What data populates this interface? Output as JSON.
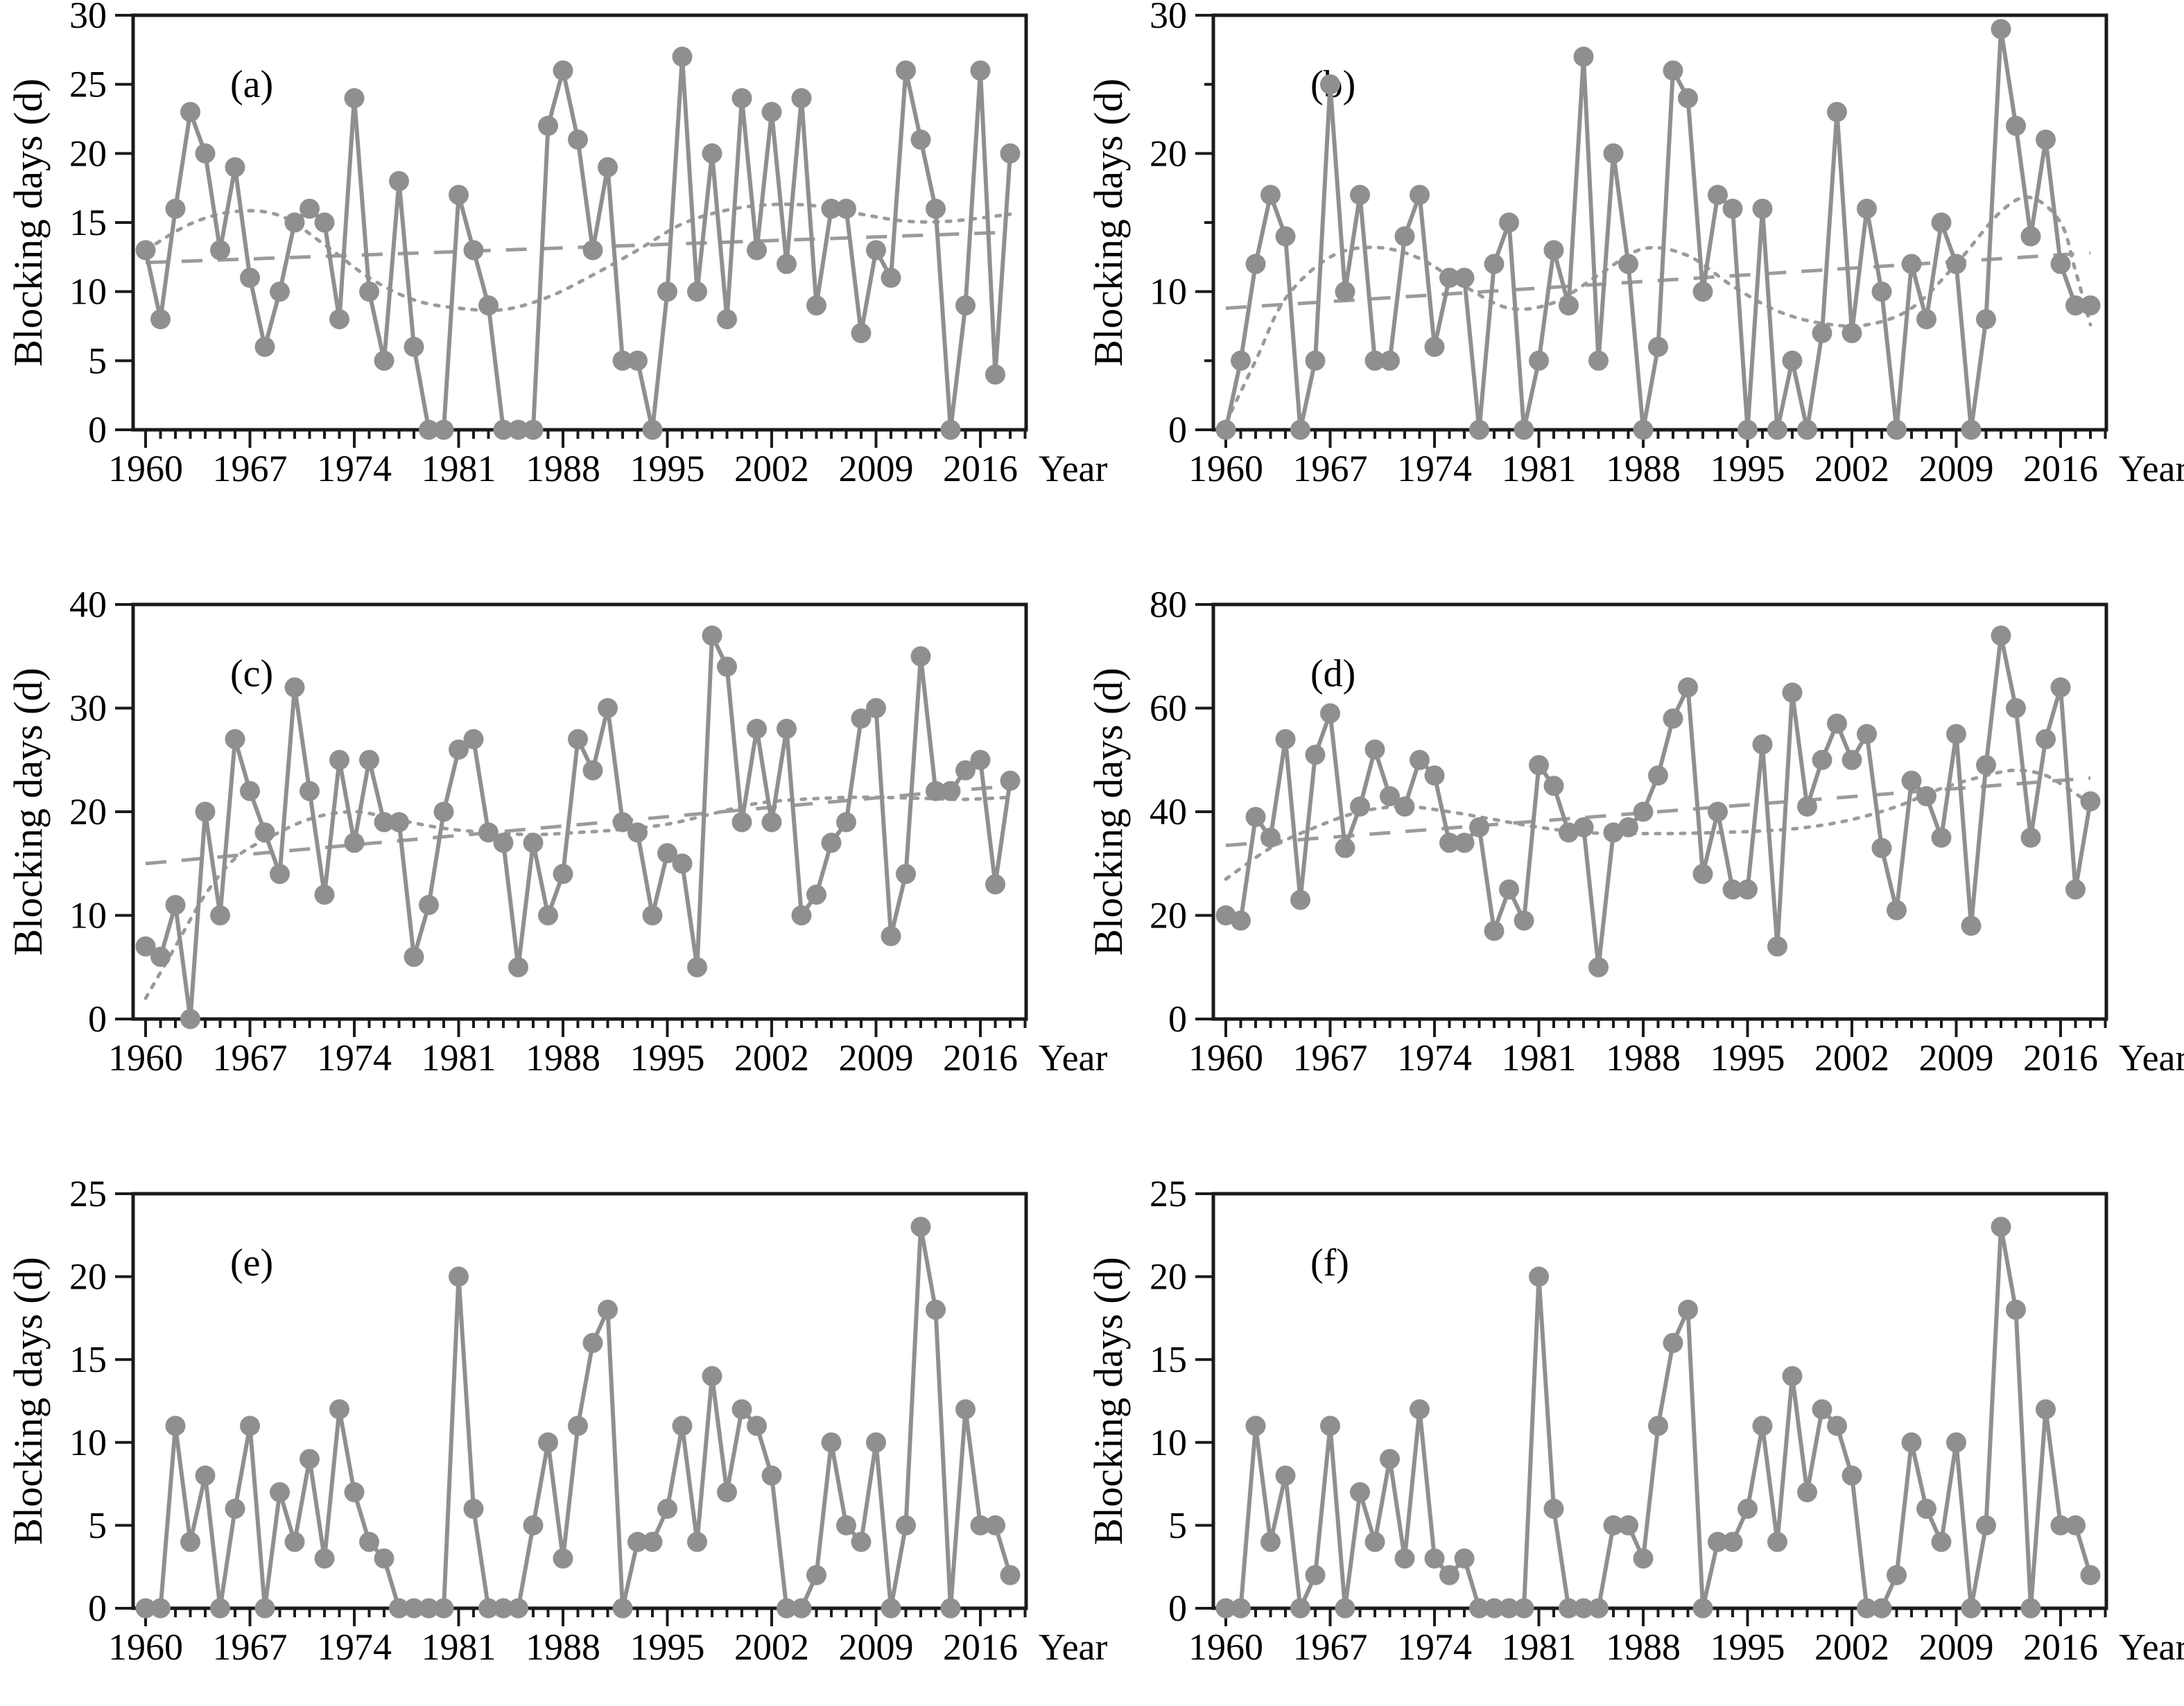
{
  "shared": {
    "xlabel": "Year",
    "ylabel": "Blocking days (d)",
    "start_year": 1960,
    "end_year": 2018,
    "series_color": "#8f8f8f",
    "trend_color": "#9b9b9b",
    "axis_color": "#1a1a1a",
    "grid": "off",
    "legend": "none"
  },
  "chart_data": [
    {
      "type": "line",
      "letter": "(a)",
      "ylim": [
        0,
        30
      ],
      "yticks": [
        0,
        5,
        10,
        15,
        20,
        25,
        30
      ],
      "yticks_minor": [],
      "xticks": [
        1960,
        1967,
        1974,
        1981,
        1988,
        1995,
        2002,
        2009,
        2016
      ],
      "x_start": 1960,
      "values": [
        13,
        8,
        16,
        23,
        20,
        13,
        19,
        11,
        6,
        10,
        15,
        16,
        15,
        8,
        24,
        10,
        5,
        18,
        6,
        0,
        0,
        17,
        13,
        9,
        0,
        0,
        0,
        22,
        26,
        21,
        13,
        19,
        5,
        5,
        0,
        10,
        27,
        10,
        20,
        8,
        24,
        13,
        23,
        12,
        24,
        9,
        16,
        16,
        7,
        13,
        11,
        26,
        21,
        16,
        0,
        9,
        26,
        4,
        20
      ],
      "trend_dashed": [
        [
          1960,
          12.1
        ],
        [
          2018,
          14.3
        ]
      ],
      "trend_dotted": [
        [
          1960,
          13.0
        ],
        [
          1963,
          14.9
        ],
        [
          1966,
          15.8
        ],
        [
          1969,
          15.5
        ],
        [
          1972,
          13.4
        ],
        [
          1975,
          11.0
        ],
        [
          1978,
          9.4
        ],
        [
          1981,
          8.8
        ],
        [
          1984,
          8.7
        ],
        [
          1987,
          9.6
        ],
        [
          1990,
          11.2
        ],
        [
          1993,
          13.0
        ],
        [
          1996,
          14.9
        ],
        [
          1999,
          15.9
        ],
        [
          2002,
          16.3
        ],
        [
          2005,
          16.2
        ],
        [
          2008,
          15.6
        ],
        [
          2011,
          15.1
        ],
        [
          2014,
          15.1
        ],
        [
          2018,
          15.6
        ]
      ]
    },
    {
      "type": "line",
      "letter": "(b)",
      "ylim": [
        0,
        30
      ],
      "yticks": [
        0,
        10,
        20,
        30
      ],
      "yticks_minor": [
        5,
        15,
        25
      ],
      "xticks": [
        1960,
        1967,
        1974,
        1981,
        1988,
        1995,
        2002,
        2009,
        2016
      ],
      "x_start": 1960,
      "values": [
        0,
        5,
        12,
        17,
        14,
        0,
        5,
        25,
        10,
        17,
        5,
        5,
        14,
        17,
        6,
        11,
        11,
        0,
        12,
        15,
        0,
        5,
        13,
        9,
        27,
        5,
        20,
        12,
        0,
        6,
        26,
        24,
        10,
        17,
        16,
        0,
        16,
        0,
        5,
        0,
        7,
        23,
        7,
        16,
        10,
        0,
        12,
        8,
        15,
        12,
        0,
        8,
        29,
        22,
        14,
        21,
        12,
        9,
        9
      ],
      "trend_dashed": [
        [
          1960,
          8.8
        ],
        [
          2018,
          12.8
        ]
      ],
      "trend_dotted": [
        [
          1960,
          0.5
        ],
        [
          1962,
          5.0
        ],
        [
          1964,
          9.5
        ],
        [
          1967,
          12.5
        ],
        [
          1970,
          13.2
        ],
        [
          1973,
          12.4
        ],
        [
          1976,
          10.4
        ],
        [
          1979,
          8.8
        ],
        [
          1982,
          9.2
        ],
        [
          1985,
          11.2
        ],
        [
          1988,
          13.1
        ],
        [
          1991,
          12.6
        ],
        [
          1994,
          10.4
        ],
        [
          1997,
          8.6
        ],
        [
          2000,
          7.7
        ],
        [
          2003,
          7.6
        ],
        [
          2006,
          8.8
        ],
        [
          2009,
          12.0
        ],
        [
          2012,
          15.8
        ],
        [
          2014,
          16.8
        ],
        [
          2016,
          15.0
        ],
        [
          2017,
          11.5
        ],
        [
          2018,
          7.6
        ]
      ]
    },
    {
      "type": "line",
      "letter": "(c)",
      "ylim": [
        0,
        40
      ],
      "yticks": [
        0,
        10,
        20,
        30,
        40
      ],
      "yticks_minor": [],
      "xticks": [
        1960,
        1967,
        1974,
        1981,
        1988,
        1995,
        2002,
        2009,
        2016
      ],
      "x_start": 1960,
      "values": [
        7,
        6,
        11,
        0,
        20,
        10,
        27,
        22,
        18,
        14,
        32,
        22,
        12,
        25,
        17,
        25,
        19,
        19,
        6,
        11,
        20,
        26,
        27,
        18,
        17,
        5,
        17,
        10,
        14,
        27,
        24,
        30,
        19,
        18,
        10,
        16,
        15,
        5,
        37,
        34,
        19,
        28,
        19,
        28,
        10,
        12,
        17,
        19,
        29,
        30,
        8,
        14,
        35,
        22,
        22,
        24,
        25,
        13,
        23
      ],
      "trend_dashed": [
        [
          1960,
          15.0
        ],
        [
          2018,
          22.5
        ]
      ],
      "trend_dotted": [
        [
          1960,
          2.0
        ],
        [
          1962,
          7.0
        ],
        [
          1964,
          12.0
        ],
        [
          1966,
          15.5
        ],
        [
          1968,
          17.3
        ],
        [
          1971,
          19.3
        ],
        [
          1974,
          20.0
        ],
        [
          1977,
          19.2
        ],
        [
          1980,
          18.4
        ],
        [
          1983,
          18.0
        ],
        [
          1986,
          17.8
        ],
        [
          1989,
          18.0
        ],
        [
          1992,
          18.3
        ],
        [
          1995,
          18.8
        ],
        [
          1998,
          19.8
        ],
        [
          2001,
          20.8
        ],
        [
          2004,
          21.2
        ],
        [
          2008,
          21.4
        ],
        [
          2012,
          21.3
        ],
        [
          2015,
          21.2
        ],
        [
          2018,
          21.4
        ]
      ]
    },
    {
      "type": "line",
      "letter": "(d)",
      "ylim": [
        0,
        80
      ],
      "yticks": [
        0,
        20,
        40,
        60,
        80
      ],
      "yticks_minor": [],
      "xticks": [
        1960,
        1967,
        1974,
        1981,
        1988,
        1995,
        2002,
        2009,
        2016
      ],
      "x_start": 1960,
      "values": [
        20,
        19,
        39,
        35,
        54,
        23,
        51,
        59,
        33,
        41,
        52,
        43,
        41,
        50,
        47,
        34,
        34,
        37,
        17,
        25,
        19,
        49,
        45,
        36,
        37,
        10,
        36,
        37,
        40,
        47,
        58,
        64,
        28,
        40,
        25,
        25,
        53,
        14,
        63,
        41,
        50,
        57,
        50,
        55,
        33,
        21,
        46,
        43,
        35,
        55,
        18,
        49,
        74,
        60,
        35,
        54,
        64,
        25,
        42
      ],
      "trend_dashed": [
        [
          1960,
          33.5
        ],
        [
          2018,
          46.5
        ]
      ],
      "trend_dotted": [
        [
          1960,
          27.0
        ],
        [
          1963,
          33.0
        ],
        [
          1966,
          37.0
        ],
        [
          1969,
          40.0
        ],
        [
          1972,
          41.0
        ],
        [
          1975,
          40.0
        ],
        [
          1978,
          38.5
        ],
        [
          1981,
          37.0
        ],
        [
          1984,
          36.0
        ],
        [
          1987,
          35.8
        ],
        [
          1990,
          35.8
        ],
        [
          1993,
          36.0
        ],
        [
          1996,
          36.3
        ],
        [
          1999,
          37.0
        ],
        [
          2002,
          38.5
        ],
        [
          2005,
          41.0
        ],
        [
          2008,
          44.5
        ],
        [
          2011,
          47.0
        ],
        [
          2013,
          48.0
        ],
        [
          2015,
          47.0
        ],
        [
          2017,
          43.5
        ],
        [
          2018,
          41.5
        ]
      ]
    },
    {
      "type": "line",
      "letter": "(e)",
      "ylim": [
        0,
        25
      ],
      "yticks": [
        0,
        5,
        10,
        15,
        20,
        25
      ],
      "yticks_minor": [],
      "xticks": [
        1960,
        1967,
        1974,
        1981,
        1988,
        1995,
        2002,
        2009,
        2016
      ],
      "x_start": 1960,
      "values": [
        0,
        0,
        11,
        4,
        8,
        0,
        6,
        11,
        0,
        7,
        4,
        9,
        3,
        12,
        7,
        4,
        3,
        0,
        0,
        0,
        0,
        20,
        6,
        0,
        0,
        0,
        5,
        10,
        3,
        11,
        16,
        18,
        0,
        4,
        4,
        6,
        11,
        4,
        14,
        7,
        12,
        11,
        8,
        0,
        0,
        2,
        10,
        5,
        4,
        10,
        0,
        5,
        23,
        18,
        0,
        12,
        5,
        5,
        2
      ],
      "trend_dashed": null,
      "trend_dotted": null
    },
    {
      "type": "line",
      "letter": "(f)",
      "ylim": [
        0,
        25
      ],
      "yticks": [
        0,
        5,
        10,
        15,
        20,
        25
      ],
      "yticks_minor": [],
      "xticks": [
        1960,
        1967,
        1974,
        1981,
        1988,
        1995,
        2002,
        2009,
        2016
      ],
      "x_start": 1960,
      "values": [
        0,
        0,
        11,
        4,
        8,
        0,
        2,
        11,
        0,
        7,
        4,
        9,
        3,
        12,
        3,
        2,
        3,
        0,
        0,
        0,
        0,
        20,
        6,
        0,
        0,
        0,
        5,
        5,
        3,
        11,
        16,
        18,
        0,
        4,
        4,
        6,
        11,
        4,
        14,
        7,
        12,
        11,
        8,
        0,
        0,
        2,
        10,
        6,
        4,
        10,
        0,
        5,
        23,
        18,
        0,
        12,
        5,
        5,
        2
      ],
      "trend_dashed": null,
      "trend_dotted": null
    }
  ]
}
